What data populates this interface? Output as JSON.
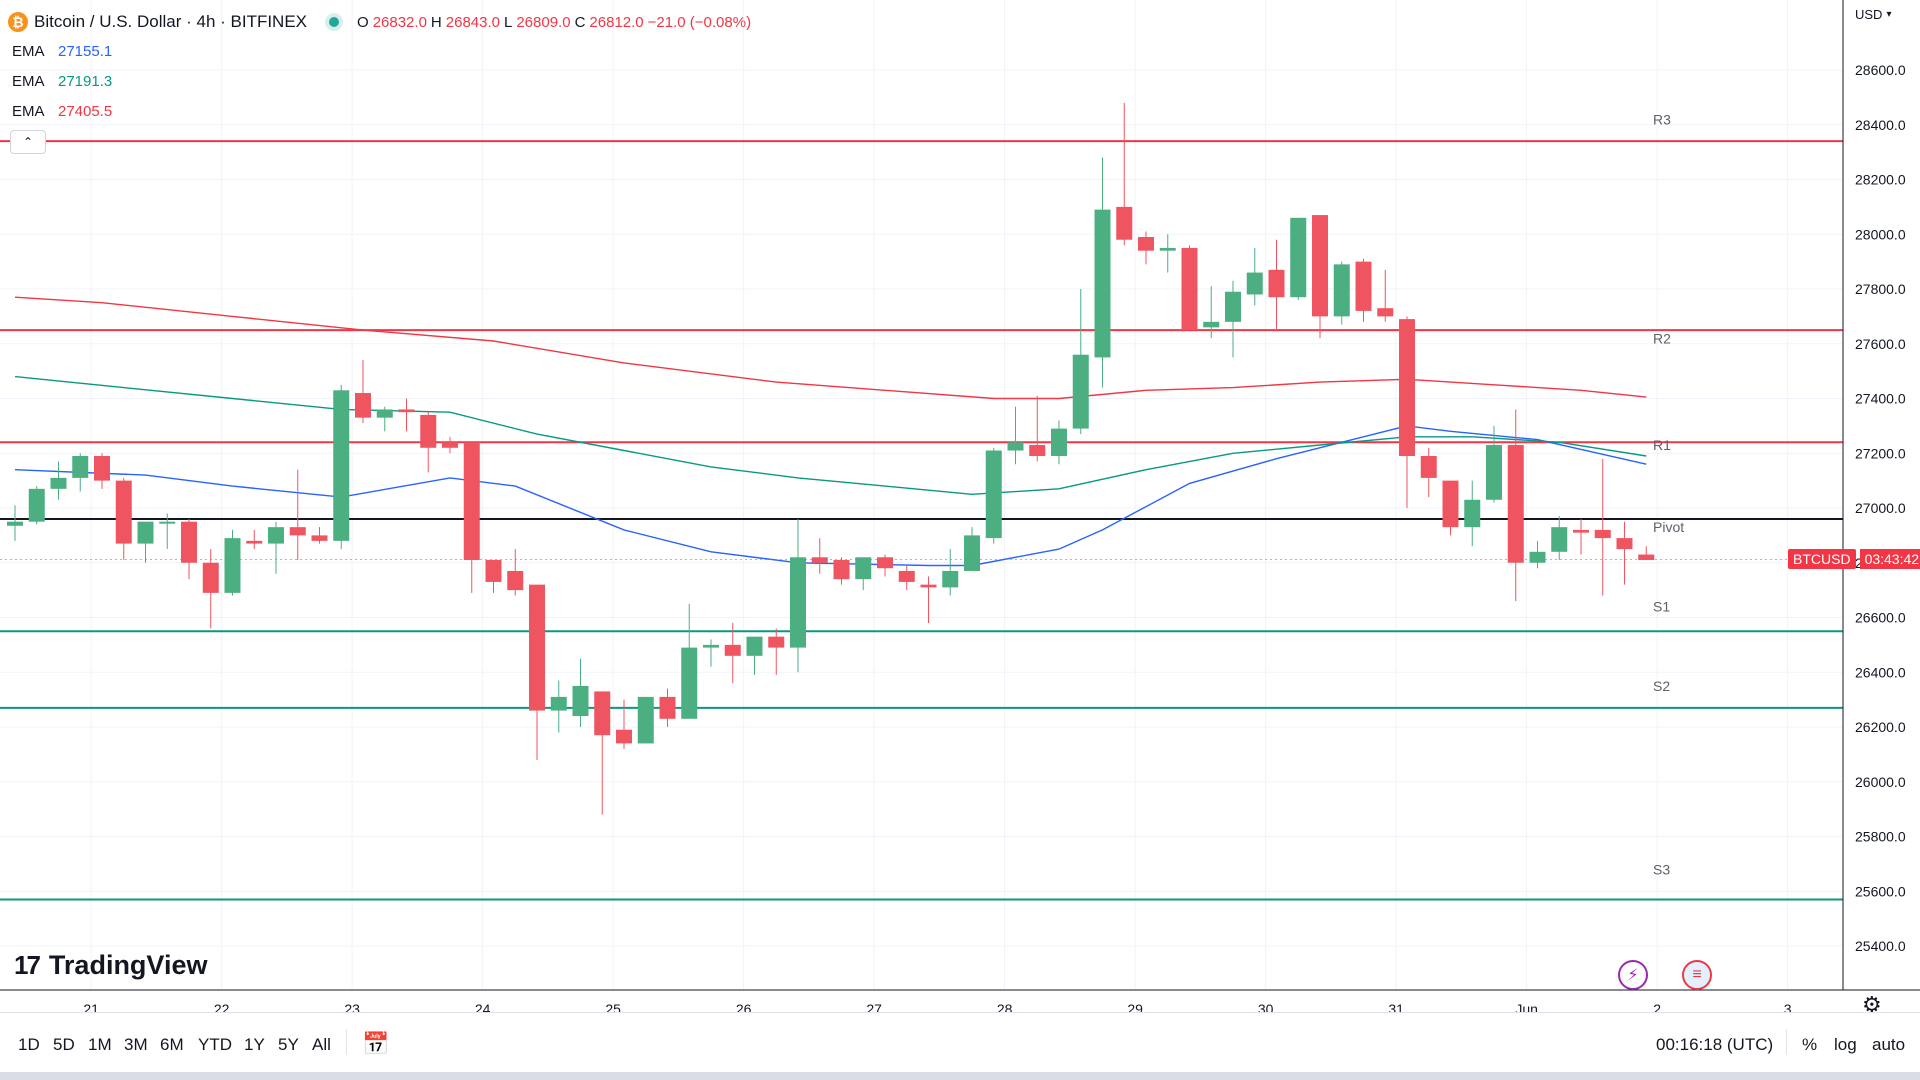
{
  "header": {
    "symbol_title": "Bitcoin / U.S. Dollar · 4h · BITFINEX",
    "coin_glyph": "₿",
    "ohlc": {
      "o_label": "O",
      "o": "26832.0",
      "h_label": "H",
      "h": "26843.0",
      "l_label": "L",
      "l": "26809.0",
      "c_label": "C",
      "c": "26812.0",
      "change": "−21.0 (−0.08%)"
    },
    "emas": [
      {
        "label": "EMA",
        "value": "27155.1",
        "color": "#2962ff"
      },
      {
        "label": "EMA",
        "value": "27191.3",
        "color": "#089981"
      },
      {
        "label": "EMA",
        "value": "27405.5",
        "color": "#f23645"
      }
    ],
    "collapse_glyph": "⌃"
  },
  "axis": {
    "currency": "USD",
    "currency_arrow": "▾"
  },
  "price_tag": {
    "symbol": "BTCUSD",
    "countdown": "03:43:42"
  },
  "logo": {
    "mark": "17",
    "text": "TradingView"
  },
  "bottom_bar": {
    "timeframes": [
      "1D",
      "5D",
      "1M",
      "3M",
      "6M",
      "YTD",
      "1Y",
      "5Y",
      "All"
    ],
    "clock": "00:16:18 (UTC)",
    "percent": "%",
    "log": "log",
    "auto": "auto"
  },
  "chart_data": {
    "type": "candlestick",
    "title": "Bitcoin / U.S. Dollar · 4h · BITFINEX",
    "ylim": [
      25200,
      28800
    ],
    "y_ticks": [
      25400,
      25600,
      25800,
      26000,
      26200,
      26400,
      26600,
      26800,
      27000,
      27200,
      27400,
      27600,
      27800,
      28000,
      28200,
      28400,
      28600
    ],
    "x_ticks": [
      {
        "label": "21",
        "idx": 3.5
      },
      {
        "label": "22",
        "idx": 9.5
      },
      {
        "label": "23",
        "idx": 15.5
      },
      {
        "label": "24",
        "idx": 21.5
      },
      {
        "label": "25",
        "idx": 27.5
      },
      {
        "label": "26",
        "idx": 33.5
      },
      {
        "label": "27",
        "idx": 39.5
      },
      {
        "label": "28",
        "idx": 45.5
      },
      {
        "label": "29",
        "idx": 51.5
      },
      {
        "label": "30",
        "idx": 57.5
      },
      {
        "label": "31",
        "idx": 63.5
      },
      {
        "label": "Jun",
        "idx": 69.5
      },
      {
        "label": "2",
        "idx": 75.5
      },
      {
        "label": "3",
        "idx": 81.5
      }
    ],
    "candles": [
      [
        26935,
        27010,
        26880,
        26950
      ],
      [
        26950,
        27080,
        26940,
        27070
      ],
      [
        27070,
        27170,
        27030,
        27110
      ],
      [
        27110,
        27200,
        27060,
        27190
      ],
      [
        27190,
        27200,
        27070,
        27100
      ],
      [
        27100,
        27110,
        26810,
        26870
      ],
      [
        26870,
        26930,
        26800,
        26950
      ],
      [
        26950,
        26980,
        26850,
        26950
      ],
      [
        26950,
        26960,
        26740,
        26800
      ],
      [
        26800,
        26850,
        26560,
        26690
      ],
      [
        26690,
        26920,
        26680,
        26890
      ],
      [
        26880,
        26920,
        26850,
        26870
      ],
      [
        26870,
        26950,
        26760,
        26930
      ],
      [
        26930,
        27140,
        26810,
        26900
      ],
      [
        26900,
        26930,
        26870,
        26880
      ],
      [
        26880,
        27450,
        26850,
        27430
      ],
      [
        27420,
        27540,
        27310,
        27330
      ],
      [
        27330,
        27370,
        27280,
        27360
      ],
      [
        27360,
        27400,
        27280,
        27350
      ],
      [
        27340,
        27350,
        27130,
        27220
      ],
      [
        27240,
        27260,
        27200,
        27220
      ],
      [
        27240,
        27230,
        26690,
        26810
      ],
      [
        26810,
        26800,
        26690,
        26730
      ],
      [
        26770,
        26850,
        26680,
        26700
      ],
      [
        26720,
        26710,
        26080,
        26260
      ],
      [
        26260,
        26370,
        26180,
        26310
      ],
      [
        26240,
        26450,
        26200,
        26350
      ],
      [
        26330,
        26330,
        25880,
        26170
      ],
      [
        26190,
        26300,
        26120,
        26140
      ],
      [
        26140,
        26300,
        26140,
        26310
      ],
      [
        26310,
        26340,
        26200,
        26230
      ],
      [
        26230,
        26650,
        26230,
        26490
      ],
      [
        26490,
        26520,
        26420,
        26500
      ],
      [
        26500,
        26580,
        26360,
        26460
      ],
      [
        26460,
        26520,
        26390,
        26530
      ],
      [
        26530,
        26560,
        26390,
        26490
      ],
      [
        26490,
        26960,
        26400,
        26820
      ],
      [
        26820,
        26890,
        26760,
        26800
      ],
      [
        26810,
        26820,
        26720,
        26740
      ],
      [
        26740,
        26810,
        26700,
        26820
      ],
      [
        26820,
        26830,
        26750,
        26780
      ],
      [
        26770,
        26790,
        26700,
        26730
      ],
      [
        26720,
        26750,
        26580,
        26710
      ],
      [
        26710,
        26850,
        26680,
        26770
      ],
      [
        26770,
        26930,
        26770,
        26900
      ],
      [
        26890,
        27220,
        26870,
        27210
      ],
      [
        27210,
        27370,
        27160,
        27240
      ],
      [
        27230,
        27410,
        27170,
        27190
      ],
      [
        27190,
        27320,
        27160,
        27290
      ],
      [
        27290,
        27800,
        27270,
        27560
      ],
      [
        27550,
        28280,
        27440,
        28090
      ],
      [
        28100,
        28480,
        27960,
        27980
      ],
      [
        27990,
        28010,
        27890,
        27940
      ],
      [
        27940,
        28000,
        27860,
        27950
      ],
      [
        27950,
        27960,
        27650,
        27650
      ],
      [
        27660,
        27810,
        27620,
        27680
      ],
      [
        27680,
        27830,
        27550,
        27790
      ],
      [
        27780,
        27950,
        27740,
        27860
      ],
      [
        27870,
        27980,
        27650,
        27770
      ],
      [
        27770,
        28060,
        27760,
        28060
      ],
      [
        28070,
        28070,
        27620,
        27700
      ],
      [
        27700,
        27900,
        27670,
        27890
      ],
      [
        27900,
        27910,
        27680,
        27720
      ],
      [
        27730,
        27870,
        27680,
        27700
      ],
      [
        27690,
        27700,
        27000,
        27190
      ],
      [
        27190,
        27220,
        27040,
        27110
      ],
      [
        27100,
        27090,
        26900,
        26930
      ],
      [
        26930,
        27100,
        26860,
        27030
      ],
      [
        27030,
        27300,
        27020,
        27230
      ],
      [
        27230,
        27360,
        26660,
        26800
      ],
      [
        26800,
        26880,
        26780,
        26840
      ],
      [
        26840,
        26970,
        26810,
        26930
      ],
      [
        26920,
        26960,
        26830,
        26910
      ],
      [
        26920,
        27180,
        26680,
        26890
      ],
      [
        26890,
        26950,
        26720,
        26850
      ],
      [
        26830,
        26860,
        26810,
        26810
      ]
    ],
    "series": [
      {
        "name": "EMA",
        "value_label": "27155.1",
        "color": "#2962ff",
        "points": [
          [
            0,
            27140
          ],
          [
            6,
            27120
          ],
          [
            10,
            27080
          ],
          [
            15,
            27040
          ],
          [
            20,
            27110
          ],
          [
            23,
            27080
          ],
          [
            28,
            26920
          ],
          [
            32,
            26840
          ],
          [
            36,
            26800
          ],
          [
            42,
            26790
          ],
          [
            44,
            26790
          ],
          [
            48,
            26850
          ],
          [
            50,
            26920
          ],
          [
            54,
            27090
          ],
          [
            58,
            27180
          ],
          [
            62,
            27260
          ],
          [
            64,
            27300
          ],
          [
            66,
            27280
          ],
          [
            70,
            27250
          ],
          [
            75,
            27160
          ]
        ]
      },
      {
        "name": "EMA",
        "value_label": "27191.3",
        "color": "#089981",
        "points": [
          [
            0,
            27480
          ],
          [
            5,
            27440
          ],
          [
            10,
            27400
          ],
          [
            15,
            27360
          ],
          [
            20,
            27350
          ],
          [
            24,
            27270
          ],
          [
            28,
            27210
          ],
          [
            32,
            27150
          ],
          [
            36,
            27110
          ],
          [
            40,
            27080
          ],
          [
            44,
            27050
          ],
          [
            48,
            27070
          ],
          [
            52,
            27140
          ],
          [
            56,
            27200
          ],
          [
            60,
            27230
          ],
          [
            64,
            27260
          ],
          [
            67,
            27260
          ],
          [
            71,
            27240
          ],
          [
            75,
            27190
          ]
        ]
      },
      {
        "name": "EMA",
        "value_label": "27405.5",
        "color": "#f23645",
        "points": [
          [
            0,
            27770
          ],
          [
            4,
            27750
          ],
          [
            10,
            27700
          ],
          [
            16,
            27650
          ],
          [
            22,
            27610
          ],
          [
            28,
            27530
          ],
          [
            35,
            27460
          ],
          [
            40,
            27430
          ],
          [
            45,
            27400
          ],
          [
            48,
            27400
          ],
          [
            52,
            27430
          ],
          [
            56,
            27440
          ],
          [
            60,
            27460
          ],
          [
            64,
            27470
          ],
          [
            68,
            27450
          ],
          [
            72,
            27430
          ],
          [
            75,
            27405
          ]
        ]
      }
    ],
    "pivot_levels": [
      {
        "label": "R3",
        "label_value": 28420,
        "value": 28340,
        "color": "#f23645"
      },
      {
        "label": "R2",
        "label_value": 27620,
        "value": 27650,
        "color": "#f23645"
      },
      {
        "label": "R1",
        "label_value": 27230,
        "value": 27240,
        "color": "#f23645"
      },
      {
        "label": "Pivot",
        "label_value": 26930,
        "value": 26960,
        "color": "#131722"
      },
      {
        "label": "S1",
        "label_value": 26640,
        "value": 26550,
        "color": "#089981"
      },
      {
        "label": "S2",
        "label_value": 26350,
        "value": 26270,
        "color": "#089981"
      },
      {
        "label": "S3",
        "label_value": 25680,
        "value": 25570,
        "color": "#089981"
      }
    ],
    "last_price": 26812,
    "up_color": "#4caf82",
    "down_color": "#ef5461"
  }
}
